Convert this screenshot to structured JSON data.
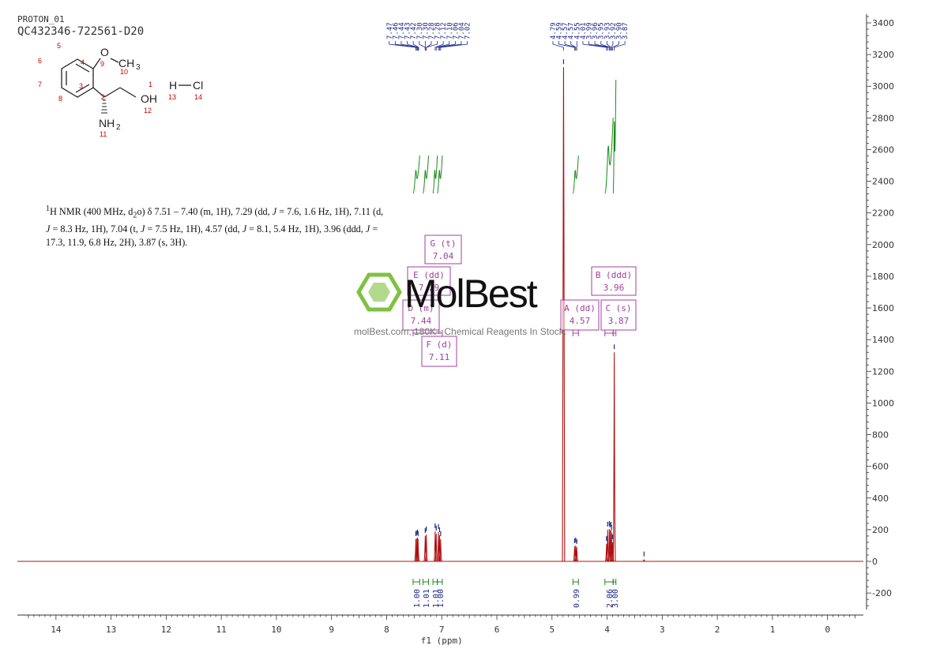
{
  "header": {
    "title": "PROTON_01",
    "sample_id": "QC432346-722561-D20"
  },
  "structure": {
    "atom_labels": {
      "O": "O",
      "CH": "CH",
      "sub3": "3",
      "OH": "OH",
      "H": "H",
      "Cl": "Cl",
      "NH": "NH",
      "sub2": "2"
    },
    "atom_numbers": [
      "1",
      "2",
      "3",
      "4",
      "5",
      "6",
      "7",
      "8",
      "9",
      "10",
      "11",
      "12",
      "13",
      "14"
    ],
    "number_color": "#cc0000"
  },
  "description": {
    "sup1": "1",
    "part1": "H NMR (400 MHz, d",
    "sub_d2o": "2",
    "part2": "o) δ 7.51 – 7.40 (m, 1H), 7.29 (dd, ",
    "j1": "J",
    "part3": " = 7.6, 1.6 Hz, 1H), 7.11 (d, ",
    "j2": "J",
    "part4": " = 8.3 Hz, 1H), 7.04 (t, ",
    "j3": "J",
    "part5": " = 7.5 Hz, 1H), 4.57 (dd, ",
    "j4": "J",
    "part6": " = 8.1, 5.4 Hz, 1H), 3.96 (ddd, ",
    "j5": "J",
    "part7": " = 17.3, 11.9, 6.8 Hz, 2H), 3.87 (s, 3H)."
  },
  "watermark": {
    "brand": "MolBest",
    "tagline": "molBest.com, 180K+ Chemical Reagents In Stock."
  },
  "colors": {
    "spectrum": "#b01010",
    "peak_labels": "#1f2a8c",
    "integral": "#1a8a1a",
    "multiplet_box": "#a040a0",
    "axis": "#333333",
    "watermark_green": "#7fc241"
  },
  "chart_data": {
    "type": "line",
    "xlabel": "f1 (ppm)",
    "xlim": [
      14.7,
      -0.65
    ],
    "ylim": [
      -300,
      3450
    ],
    "x_ticks": [
      14,
      13,
      12,
      11,
      10,
      9,
      8,
      7,
      6,
      5,
      4,
      3,
      2,
      1,
      0
    ],
    "y_ticks": [
      3400,
      3200,
      3000,
      2800,
      2600,
      2400,
      2200,
      2000,
      1800,
      1600,
      1400,
      1200,
      1000,
      800,
      600,
      400,
      200,
      0,
      -200
    ],
    "y_tick_labels": [
      "3400",
      "3200",
      "3000",
      "2800",
      "2600",
      "2400",
      "2200",
      "2000",
      "1800",
      "1600",
      "1400",
      "1200",
      "1000",
      "800",
      "600",
      "400",
      "200",
      "0",
      "-200"
    ],
    "peaks": [
      {
        "ppm": 7.47,
        "intensity": 140
      },
      {
        "ppm": 7.46,
        "intensity": 145
      },
      {
        "ppm": 7.44,
        "intensity": 150
      },
      {
        "ppm": 7.43,
        "intensity": 140
      },
      {
        "ppm": 7.3,
        "intensity": 160
      },
      {
        "ppm": 7.28,
        "intensity": 170
      },
      {
        "ppm": 7.12,
        "intensity": 190
      },
      {
        "ppm": 7.1,
        "intensity": 175
      },
      {
        "ppm": 7.06,
        "intensity": 185
      },
      {
        "ppm": 7.04,
        "intensity": 165
      },
      {
        "ppm": 7.02,
        "intensity": 140
      },
      {
        "ppm": 4.79,
        "intensity": 3120
      },
      {
        "ppm": 4.59,
        "intensity": 95
      },
      {
        "ppm": 4.57,
        "intensity": 100
      },
      {
        "ppm": 4.55,
        "intensity": 90
      },
      {
        "ppm": 4.01,
        "intensity": 110
      },
      {
        "ppm": 3.99,
        "intensity": 200
      },
      {
        "ppm": 3.96,
        "intensity": 205
      },
      {
        "ppm": 3.95,
        "intensity": 195
      },
      {
        "ppm": 3.93,
        "intensity": 200
      },
      {
        "ppm": 3.92,
        "intensity": 180
      },
      {
        "ppm": 3.9,
        "intensity": 120
      },
      {
        "ppm": 3.87,
        "intensity": 1320
      },
      {
        "ppm": 3.33,
        "intensity": 12
      }
    ],
    "peak_label_groups": [
      {
        "labels": [
          "7.47",
          "7.46",
          "7.44",
          "7.43",
          "7.42",
          "7.30",
          "7.30",
          "7.28",
          "7.28",
          "7.12",
          "7.10",
          "7.06",
          "7.04",
          "7.02"
        ],
        "ppm_min": 7.02,
        "ppm_max": 7.47
      },
      {
        "labels": [
          "4.79",
          "4.59",
          "4.57",
          "4.57",
          "4.55",
          "4.01",
          "3.99",
          "3.96",
          "3.95",
          "3.93",
          "3.92",
          "3.90",
          "3.87"
        ],
        "ppm_min": 3.87,
        "ppm_max": 4.79
      }
    ],
    "multiplets": [
      {
        "letter": "G (t)",
        "shift": "7.04"
      },
      {
        "letter": "E (dd)",
        "shift": "7.29"
      },
      {
        "letter": "D (m)",
        "shift": "7.44"
      },
      {
        "letter": "F (d)",
        "shift": "7.11"
      },
      {
        "letter": "A (dd)",
        "shift": "4.57"
      },
      {
        "letter": "B (ddd)",
        "shift": "3.96"
      },
      {
        "letter": "C (s)",
        "shift": "3.87"
      }
    ],
    "integrals": [
      {
        "ppm_from": 7.52,
        "ppm_to": 7.4,
        "value": "1.00",
        "rise": 250
      },
      {
        "ppm_from": 7.34,
        "ppm_to": 7.24,
        "value": "1.01",
        "rise": 250
      },
      {
        "ppm_from": 7.16,
        "ppm_to": 7.08,
        "value": "1.01",
        "rise": 250
      },
      {
        "ppm_from": 7.08,
        "ppm_to": 6.99,
        "value": "1.00",
        "rise": 250
      },
      {
        "ppm_from": 4.62,
        "ppm_to": 4.52,
        "value": "0.99",
        "rise": 250
      },
      {
        "ppm_from": 4.04,
        "ppm_to": 3.89,
        "value": "2.06",
        "rise": 500
      },
      {
        "ppm_from": 3.89,
        "ppm_to": 3.84,
        "value": "3.00",
        "rise": 750
      }
    ]
  }
}
